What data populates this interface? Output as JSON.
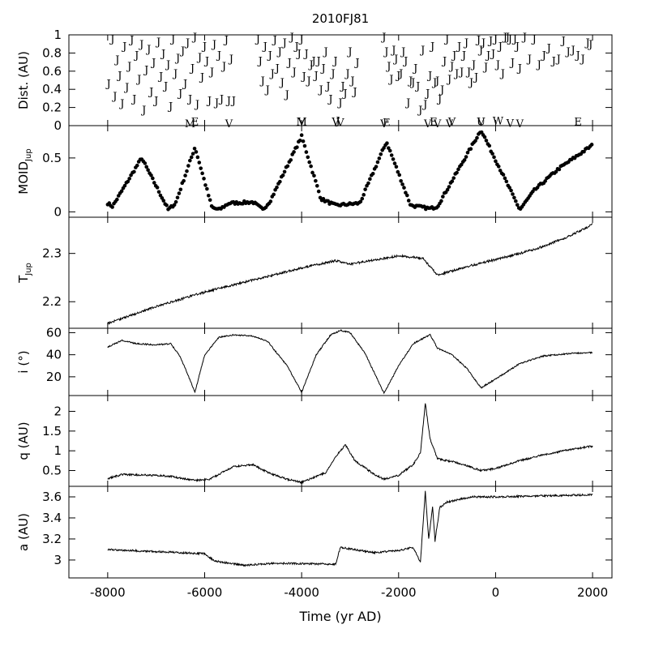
{
  "chart_data": {
    "type": "line",
    "title": "2010FJ81",
    "xlabel": "Time (yr AD)",
    "xlim": [
      -8800,
      2400
    ],
    "x_ticks": [
      -8000,
      -6000,
      -4000,
      -2000,
      0,
      2000
    ],
    "x_tick_labels": [
      "-8000",
      "-6000",
      "-4000",
      "-2000",
      "0",
      "2000"
    ],
    "panels": [
      {
        "id": "dist",
        "ylabel": "Dist. (AU)",
        "ylim": [
          0,
          1
        ],
        "y_ticks": [
          0,
          0.2,
          0.4,
          0.6,
          0.8,
          1
        ],
        "y_tick_labels": [
          "0",
          "0.2",
          "0.4",
          "0.6",
          "0.8",
          "1"
        ],
        "type": "scatter-letters",
        "series": [
          {
            "label": "J",
            "x": [
              -7980,
              -7900,
              -7850,
              -7800,
              -7750,
              -7700,
              -7650,
              -7600,
              -7550,
              -7500,
              -7450,
              -7400,
              -7350,
              -7300,
              -7250,
              -7200,
              -7150,
              -7100,
              -7050,
              -7000,
              -6950,
              -6900,
              -6850,
              -6800,
              -6750,
              -6700,
              -6650,
              -6600,
              -6550,
              -6500,
              -6450,
              -6400,
              -6350,
              -6300,
              -6250,
              -6200,
              -6150,
              -6100,
              -6050,
              -6000,
              -5950,
              -5900,
              -5850,
              -5800,
              -5750,
              -5700,
              -5650,
              -5600,
              -5550,
              -5500,
              -5450,
              -5400,
              -4900,
              -4850,
              -4800,
              -4750,
              -4700,
              -4650,
              -4600,
              -4550,
              -4500,
              -4450,
              -4400,
              -4350,
              -4300,
              -4250,
              -4200,
              -4150,
              -4100,
              -4050,
              -4000,
              -3950,
              -3900,
              -3850,
              -3800,
              -3750,
              -3700,
              -3650,
              -3600,
              -3550,
              -3500,
              -3450,
              -3400,
              -3350,
              -3300,
              -3250,
              -3200,
              -3150,
              -3100,
              -3050,
              -3000,
              -2950,
              -2900,
              -2850,
              -2300,
              -2250,
              -2200,
              -2150,
              -2100,
              -2050,
              -2000,
              -1950,
              -1900,
              -1850,
              -1800,
              -1750,
              -1700,
              -1650,
              -1600,
              -1550,
              -1500,
              -1450,
              -1400,
              -1350,
              -1300,
              -1250,
              -1200,
              -1150,
              -1100,
              -1050,
              -1000,
              -950,
              -900,
              -850,
              -800,
              -750,
              -700,
              -650,
              -600,
              -550,
              -500,
              -450,
              -400,
              -350,
              -300,
              -250,
              -200,
              -150,
              -100,
              -50,
              0,
              50,
              100,
              150,
              200,
              250,
              300,
              350,
              400,
              450,
              500,
              600,
              700,
              800,
              900,
              1000,
              1100,
              1200,
              1300,
              1400,
              1500,
              1600,
              1700,
              1800,
              1900,
              1960
            ],
            "y": [
              0.47,
              0.96,
              0.33,
              0.73,
              0.56,
              0.25,
              0.88,
              0.43,
              0.66,
              0.95,
              0.3,
              0.78,
              0.52,
              0.9,
              0.18,
              0.62,
              0.85,
              0.38,
              0.7,
              0.28,
              0.93,
              0.55,
              0.8,
              0.44,
              0.68,
              0.22,
              0.96,
              0.58,
              0.75,
              0.36,
              0.83,
              0.47,
              0.92,
              0.3,
              0.64,
              0.98,
              0.24,
              0.76,
              0.54,
              0.88,
              0.72,
              0.28,
              0.6,
              0.9,
              0.26,
              0.78,
              0.3,
              0.66,
              0.95,
              0.28,
              0.74,
              0.28,
              0.96,
              0.72,
              0.5,
              0.88,
              0.4,
              0.78,
              0.58,
              0.95,
              0.64,
              0.82,
              0.48,
              0.92,
              0.35,
              0.7,
              0.98,
              0.6,
              0.88,
              0.8,
              0.96,
              0.55,
              0.8,
              0.5,
              0.68,
              0.72,
              0.56,
              0.72,
              0.4,
              0.64,
              0.82,
              0.44,
              0.3,
              0.58,
              0.72,
              0.06,
              0.26,
              0.44,
              0.36,
              0.58,
              0.82,
              0.5,
              0.38,
              0.7,
              0.98,
              0.82,
              0.66,
              0.52,
              0.84,
              0.74,
              0.56,
              0.58,
              0.82,
              0.72,
              0.26,
              0.5,
              0.48,
              0.64,
              0.44,
              0.18,
              0.84,
              0.24,
              0.36,
              0.56,
              0.88,
              0.48,
              0.5,
              0.3,
              0.4,
              0.72,
              0.96,
              0.52,
              0.66,
              0.78,
              0.58,
              0.88,
              0.6,
              0.78,
              0.92,
              0.6,
              0.48,
              0.68,
              0.54,
              0.95,
              0.84,
              0.92,
              0.65,
              0.78,
              0.94,
              0.8,
              0.96,
              0.68,
              0.88,
              0.58,
              0.98,
              0.98,
              0.96,
              0.7,
              0.96,
              0.88,
              0.64,
              0.98,
              0.74,
              0.96,
              0.68,
              0.78,
              0.86,
              0.72,
              0.74,
              0.94,
              0.82,
              0.84,
              0.78,
              0.74,
              0.92,
              0.9
            ]
          },
          {
            "label": "M",
            "x": [
              -6300,
              -4000
            ],
            "y": [
              0.0,
              0.05
            ]
          },
          {
            "label": "E",
            "x": [
              -6200,
              -2250,
              -1280,
              1700
            ],
            "y": [
              0.05,
              0.04,
              0.05,
              0.05
            ]
          },
          {
            "label": "V",
            "x": [
              -5500,
              -4000,
              -3300,
              -3200,
              -2300,
              -1400,
              -1200,
              -950,
              -900,
              -300,
              300,
              500
            ],
            "y": [
              0.01,
              0.05,
              0.05,
              0.04,
              0.01,
              0.01,
              0.01,
              0.01,
              0.05,
              0.05,
              0.03,
              0.0
            ]
          },
          {
            "label": "W",
            "x": [
              50
            ],
            "y": [
              0.06
            ]
          },
          {
            "label": "U",
            "x": [
              -300
            ],
            "y": [
              0.05
            ]
          }
        ]
      },
      {
        "id": "moid",
        "ylabel": "MOID",
        "ylabel_sub": "Jup",
        "ylim": [
          -0.05,
          0.8
        ],
        "y_ticks": [
          0,
          0.5
        ],
        "y_tick_labels": [
          "0",
          "0.5"
        ],
        "type": "scatter",
        "knots": [
          [
            -8000,
            0.08
          ],
          [
            -7900,
            0.05
          ],
          [
            -7300,
            0.5
          ],
          [
            -6750,
            0.02
          ],
          [
            -6600,
            0.08
          ],
          [
            -6200,
            0.6
          ],
          [
            -5850,
            0.04
          ],
          [
            -5700,
            0.02
          ],
          [
            -5500,
            0.08
          ],
          [
            -5000,
            0.09
          ],
          [
            -4800,
            0.02
          ],
          [
            -4650,
            0.1
          ],
          [
            -4000,
            0.7
          ],
          [
            -3600,
            0.12
          ],
          [
            -3300,
            0.06
          ],
          [
            -2800,
            0.08
          ],
          [
            -2250,
            0.65
          ],
          [
            -1750,
            0.06
          ],
          [
            -1350,
            0.03
          ],
          [
            -1200,
            0.05
          ],
          [
            -300,
            0.76
          ],
          [
            500,
            0.02
          ],
          [
            800,
            0.2
          ],
          [
            1300,
            0.4
          ],
          [
            2000,
            0.62
          ]
        ]
      },
      {
        "id": "tjup",
        "ylabel": "T",
        "ylabel_sub": "Jup",
        "ylim": [
          2.145,
          2.375
        ],
        "y_ticks": [
          2.2,
          2.3
        ],
        "y_tick_labels": [
          "2.2",
          "2.3"
        ],
        "type": "line",
        "knots": [
          [
            -8000,
            2.155
          ],
          [
            -7000,
            2.19
          ],
          [
            -6000,
            2.22
          ],
          [
            -5000,
            2.245
          ],
          [
            -4000,
            2.27
          ],
          [
            -3300,
            2.285
          ],
          [
            -3000,
            2.278
          ],
          [
            -2000,
            2.295
          ],
          [
            -1500,
            2.29
          ],
          [
            -1200,
            2.255
          ],
          [
            -500,
            2.275
          ],
          [
            500,
            2.3
          ],
          [
            1000,
            2.315
          ],
          [
            1500,
            2.335
          ],
          [
            2000,
            2.36
          ]
        ]
      },
      {
        "id": "incl",
        "ylabel": "i (°)",
        "ylim": [
          3,
          64
        ],
        "y_ticks": [
          20,
          40,
          60
        ],
        "y_tick_labels": [
          "20",
          "40",
          "60"
        ],
        "type": "line",
        "knots": [
          [
            -8000,
            47
          ],
          [
            -7700,
            53
          ],
          [
            -7400,
            50
          ],
          [
            -7000,
            49
          ],
          [
            -6700,
            50
          ],
          [
            -6500,
            38
          ],
          [
            -6200,
            6
          ],
          [
            -6000,
            40
          ],
          [
            -5700,
            56
          ],
          [
            -5400,
            58
          ],
          [
            -5000,
            57
          ],
          [
            -4700,
            52
          ],
          [
            -4300,
            30
          ],
          [
            -4000,
            6
          ],
          [
            -3700,
            40
          ],
          [
            -3400,
            58
          ],
          [
            -3200,
            62
          ],
          [
            -3000,
            60
          ],
          [
            -2700,
            42
          ],
          [
            -2300,
            5
          ],
          [
            -2000,
            30
          ],
          [
            -1700,
            50
          ],
          [
            -1450,
            56
          ],
          [
            -1350,
            58
          ],
          [
            -1200,
            46
          ],
          [
            -900,
            40
          ],
          [
            -600,
            28
          ],
          [
            -300,
            10
          ],
          [
            0,
            18
          ],
          [
            500,
            32
          ],
          [
            1000,
            39
          ],
          [
            1500,
            41
          ],
          [
            2000,
            42
          ]
        ]
      },
      {
        "id": "q",
        "ylabel": "q (AU)",
        "ylim": [
          0.1,
          2.4
        ],
        "y_ticks": [
          0.5,
          1,
          1.5,
          2
        ],
        "y_tick_labels": [
          "0.5",
          "1",
          "1.5",
          "2"
        ],
        "type": "line",
        "knots": [
          [
            -8000,
            0.3
          ],
          [
            -7700,
            0.4
          ],
          [
            -7000,
            0.38
          ],
          [
            -6700,
            0.35
          ],
          [
            -6200,
            0.25
          ],
          [
            -5900,
            0.28
          ],
          [
            -5400,
            0.6
          ],
          [
            -5000,
            0.65
          ],
          [
            -4700,
            0.45
          ],
          [
            -4300,
            0.28
          ],
          [
            -4000,
            0.2
          ],
          [
            -3500,
            0.45
          ],
          [
            -3300,
            0.85
          ],
          [
            -3100,
            1.15
          ],
          [
            -2900,
            0.75
          ],
          [
            -2500,
            0.4
          ],
          [
            -2300,
            0.28
          ],
          [
            -2000,
            0.38
          ],
          [
            -1700,
            0.65
          ],
          [
            -1550,
            0.95
          ],
          [
            -1450,
            2.2
          ],
          [
            -1350,
            1.3
          ],
          [
            -1200,
            0.8
          ],
          [
            -800,
            0.7
          ],
          [
            -300,
            0.5
          ],
          [
            0,
            0.55
          ],
          [
            500,
            0.75
          ],
          [
            1000,
            0.9
          ],
          [
            1500,
            1.02
          ],
          [
            2000,
            1.12
          ]
        ]
      },
      {
        "id": "a",
        "ylabel": "a (AU)",
        "ylim": [
          2.83,
          3.7
        ],
        "y_ticks": [
          3,
          3.2,
          3.4,
          3.6
        ],
        "y_tick_labels": [
          "3",
          "3.2",
          "3.4",
          "3.6"
        ],
        "type": "line",
        "knots": [
          [
            -8000,
            3.1
          ],
          [
            -7000,
            3.08
          ],
          [
            -6000,
            3.06
          ],
          [
            -5800,
            2.99
          ],
          [
            -5200,
            2.95
          ],
          [
            -4500,
            2.97
          ],
          [
            -3300,
            2.96
          ],
          [
            -3200,
            3.12
          ],
          [
            -2500,
            3.07
          ],
          [
            -2000,
            3.09
          ],
          [
            -1700,
            3.12
          ],
          [
            -1550,
            2.98
          ],
          [
            -1450,
            3.65
          ],
          [
            -1380,
            3.2
          ],
          [
            -1300,
            3.5
          ],
          [
            -1250,
            3.18
          ],
          [
            -1150,
            3.5
          ],
          [
            -1000,
            3.55
          ],
          [
            -500,
            3.6
          ],
          [
            0,
            3.6
          ],
          [
            1000,
            3.61
          ],
          [
            2000,
            3.62
          ]
        ]
      }
    ]
  }
}
